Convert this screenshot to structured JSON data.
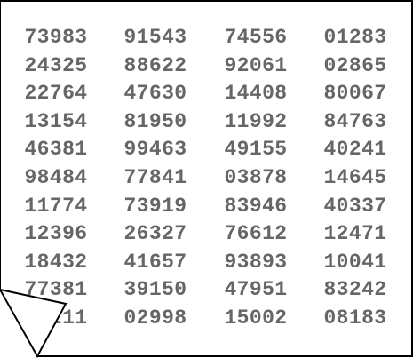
{
  "table": {
    "rows": [
      [
        "73983",
        "91543",
        "74556",
        "01283"
      ],
      [
        "24325",
        "88622",
        "92061",
        "02865"
      ],
      [
        "22764",
        "47630",
        "14408",
        "80067"
      ],
      [
        "13154",
        "81950",
        "11992",
        "84763"
      ],
      [
        "46381",
        "99463",
        "49155",
        "40241"
      ],
      [
        "98484",
        "77841",
        "03878",
        "14645"
      ],
      [
        "11774",
        "73919",
        "83946",
        "40337"
      ],
      [
        "12396",
        "26327",
        "76612",
        "12471"
      ],
      [
        "18432",
        "41657",
        "93893",
        "10041"
      ],
      [
        "77381",
        "39150",
        "47951",
        "83242"
      ],
      [
        "75211",
        "02998",
        "15002",
        "08183"
      ]
    ]
  },
  "colors": {
    "text": "#666666",
    "border": "#000000",
    "paper": "#ffffff"
  },
  "icons": {
    "corner": "page-curl-icon"
  }
}
